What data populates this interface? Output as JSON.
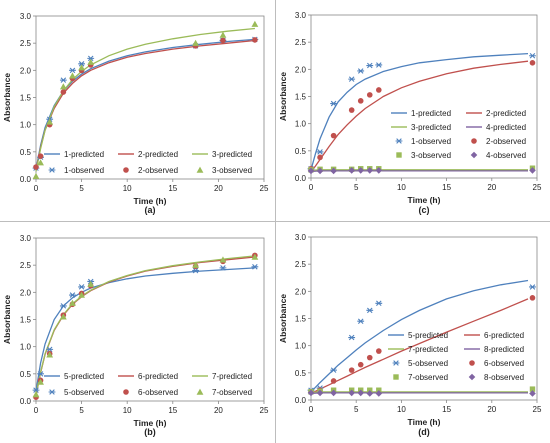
{
  "chart_data": [
    {
      "id": "a",
      "type": "line",
      "panel_label": "(a)",
      "xlabel": "Time (h)",
      "ylabel": "Absorbance",
      "xlim": [
        0,
        25
      ],
      "ylim": [
        0,
        3
      ],
      "xticks": [
        "0",
        "5",
        "10",
        "15",
        "20",
        "25"
      ],
      "yticks": [
        "0.0",
        "0.5",
        "1.0",
        "1.5",
        "2.0",
        "2.5",
        "3.0"
      ],
      "legend_position": "bottom-right",
      "lines": [
        {
          "name": "1-predicted",
          "color": "#4f81bd",
          "x": [
            0,
            0.5,
            1,
            2,
            3,
            4,
            5,
            6,
            8,
            10,
            12,
            15,
            18,
            21,
            24
          ],
          "y": [
            0.18,
            0.62,
            0.95,
            1.35,
            1.62,
            1.8,
            1.93,
            2.03,
            2.17,
            2.27,
            2.34,
            2.42,
            2.48,
            2.53,
            2.57
          ]
        },
        {
          "name": "2-predicted",
          "color": "#c0504d",
          "x": [
            0,
            0.5,
            1,
            2,
            3,
            4,
            5,
            6,
            8,
            10,
            12,
            15,
            18,
            21,
            24
          ],
          "y": [
            0.16,
            0.58,
            0.9,
            1.3,
            1.58,
            1.76,
            1.9,
            2.0,
            2.14,
            2.24,
            2.31,
            2.39,
            2.45,
            2.5,
            2.55
          ]
        },
        {
          "name": "3-predicted",
          "color": "#9bbb59",
          "x": [
            0,
            0.5,
            1,
            2,
            3,
            4,
            5,
            6,
            8,
            10,
            12,
            15,
            18,
            21,
            24
          ],
          "y": [
            0.14,
            0.56,
            0.9,
            1.33,
            1.62,
            1.83,
            1.98,
            2.1,
            2.27,
            2.39,
            2.48,
            2.58,
            2.66,
            2.72,
            2.77
          ]
        }
      ],
      "points": [
        {
          "name": "1-observed",
          "marker": "star",
          "color": "#4f81bd",
          "x": [
            0,
            0.5,
            1.5,
            3,
            4,
            5,
            6,
            17.5,
            20.5,
            24
          ],
          "y": [
            0.2,
            0.4,
            1.1,
            1.82,
            2.0,
            2.12,
            2.22,
            2.45,
            2.55,
            2.57
          ]
        },
        {
          "name": "2-observed",
          "marker": "circle",
          "color": "#c0504d",
          "x": [
            0,
            0.5,
            1.5,
            3,
            4,
            5,
            6,
            17.5,
            20.5,
            24
          ],
          "y": [
            0.22,
            0.42,
            1.0,
            1.6,
            1.85,
            2.0,
            2.1,
            2.45,
            2.55,
            2.56
          ]
        },
        {
          "name": "3-observed",
          "marker": "triangle",
          "color": "#9bbb59",
          "x": [
            0,
            0.5,
            1.5,
            3,
            4,
            5,
            6,
            17.5,
            20.5,
            24
          ],
          "y": [
            0.05,
            0.3,
            1.05,
            1.7,
            1.9,
            2.05,
            2.15,
            2.5,
            2.65,
            2.85
          ]
        }
      ]
    },
    {
      "id": "c",
      "type": "line",
      "panel_label": "(c)",
      "xlabel": "Time (h)",
      "ylabel": "Absorbance",
      "xlim": [
        0,
        25
      ],
      "ylim": [
        0,
        3
      ],
      "xticks": [
        "0",
        "5",
        "10",
        "15",
        "20",
        "25"
      ],
      "yticks": [
        "0.0",
        "0.5",
        "1.0",
        "1.5",
        "2.0",
        "2.5",
        "3.0"
      ],
      "legend_position": "bottom-right",
      "lines": [
        {
          "name": "1-predicted",
          "color": "#4f81bd",
          "x": [
            0,
            0.5,
            1,
            2,
            3,
            4,
            5,
            6,
            8,
            10,
            12,
            15,
            18,
            21,
            24
          ],
          "y": [
            0.15,
            0.45,
            0.72,
            1.12,
            1.4,
            1.58,
            1.72,
            1.82,
            1.96,
            2.05,
            2.12,
            2.18,
            2.23,
            2.26,
            2.29
          ]
        },
        {
          "name": "2-predicted",
          "color": "#c0504d",
          "x": [
            0,
            0.5,
            1,
            2,
            3,
            4,
            5,
            6,
            8,
            10,
            12,
            15,
            18,
            21,
            24
          ],
          "y": [
            0.12,
            0.22,
            0.34,
            0.58,
            0.8,
            0.98,
            1.14,
            1.28,
            1.5,
            1.66,
            1.78,
            1.92,
            2.02,
            2.09,
            2.15
          ]
        },
        {
          "name": "3-predicted",
          "color": "#9bbb59",
          "x": [
            0,
            1,
            3,
            6,
            10,
            15,
            20,
            24
          ],
          "y": [
            0.14,
            0.15,
            0.15,
            0.15,
            0.15,
            0.15,
            0.15,
            0.15
          ]
        },
        {
          "name": "4-predicted",
          "color": "#8064a2",
          "x": [
            0,
            1,
            3,
            6,
            10,
            15,
            20,
            24
          ],
          "y": [
            0.12,
            0.13,
            0.13,
            0.13,
            0.13,
            0.13,
            0.13,
            0.13
          ]
        }
      ],
      "points": [
        {
          "name": "1-observed",
          "marker": "star",
          "color": "#4f81bd",
          "x": [
            0,
            1,
            2.5,
            4.5,
            5.5,
            6.5,
            7.5,
            24.5
          ],
          "y": [
            0.17,
            0.48,
            1.37,
            1.82,
            1.97,
            2.07,
            2.08,
            2.25
          ]
        },
        {
          "name": "2-observed",
          "marker": "circle",
          "color": "#c0504d",
          "x": [
            0,
            1,
            2.5,
            4.5,
            5.5,
            6.5,
            7.5,
            24.5
          ],
          "y": [
            0.17,
            0.38,
            0.78,
            1.25,
            1.42,
            1.53,
            1.62,
            2.12
          ]
        },
        {
          "name": "3-observed",
          "marker": "square",
          "color": "#9bbb59",
          "x": [
            0,
            1,
            2.5,
            4.5,
            5.5,
            6.5,
            7.5,
            24.5
          ],
          "y": [
            0.15,
            0.16,
            0.16,
            0.16,
            0.17,
            0.17,
            0.17,
            0.18
          ]
        },
        {
          "name": "4-observed",
          "marker": "diamond",
          "color": "#8064a2",
          "x": [
            0,
            1,
            2.5,
            4.5,
            5.5,
            6.5,
            7.5,
            24.5
          ],
          "y": [
            0.13,
            0.13,
            0.13,
            0.14,
            0.14,
            0.14,
            0.14,
            0.14
          ]
        }
      ]
    },
    {
      "id": "b",
      "type": "line",
      "panel_label": "(b)",
      "xlabel": "Time (h)",
      "ylabel": "Absorbance",
      "xlim": [
        0,
        25
      ],
      "ylim": [
        0,
        3
      ],
      "xticks": [
        "0",
        "5",
        "10",
        "15",
        "20",
        "25"
      ],
      "yticks": [
        "0.0",
        "0.5",
        "1.0",
        "1.5",
        "2.0",
        "2.5",
        "3.0"
      ],
      "legend_position": "bottom-right",
      "lines": [
        {
          "name": "5-predicted",
          "color": "#4f81bd",
          "x": [
            0,
            0.5,
            1,
            2,
            3,
            4,
            5,
            6,
            8,
            10,
            12,
            15,
            18,
            21,
            24
          ],
          "y": [
            0.18,
            0.7,
            1.05,
            1.5,
            1.75,
            1.9,
            2.0,
            2.08,
            2.18,
            2.25,
            2.3,
            2.35,
            2.39,
            2.42,
            2.45
          ]
        },
        {
          "name": "6-predicted",
          "color": "#c0504d",
          "x": [
            0,
            0.5,
            1,
            2,
            3,
            4,
            5,
            6,
            8,
            10,
            12,
            15,
            18,
            21,
            24
          ],
          "y": [
            0.1,
            0.52,
            0.86,
            1.3,
            1.58,
            1.78,
            1.92,
            2.03,
            2.19,
            2.3,
            2.39,
            2.48,
            2.55,
            2.6,
            2.65
          ]
        },
        {
          "name": "7-predicted",
          "color": "#9bbb59",
          "x": [
            0,
            0.5,
            1,
            2,
            3,
            4,
            5,
            6,
            8,
            10,
            12,
            15,
            18,
            21,
            24
          ],
          "y": [
            0.11,
            0.53,
            0.87,
            1.31,
            1.59,
            1.79,
            1.93,
            2.04,
            2.2,
            2.31,
            2.4,
            2.49,
            2.56,
            2.62,
            2.67
          ]
        }
      ],
      "points": [
        {
          "name": "5-observed",
          "marker": "star",
          "color": "#4f81bd",
          "x": [
            0,
            0.5,
            1.5,
            3,
            4,
            5,
            6,
            17.5,
            20.5,
            24
          ],
          "y": [
            0.2,
            0.5,
            0.95,
            1.75,
            1.95,
            2.1,
            2.2,
            2.4,
            2.45,
            2.47
          ]
        },
        {
          "name": "6-observed",
          "marker": "circle",
          "color": "#c0504d",
          "x": [
            0,
            0.5,
            1.5,
            3,
            4,
            5,
            6,
            17.5,
            20.5,
            24
          ],
          "y": [
            0.07,
            0.38,
            0.87,
            1.58,
            1.78,
            1.98,
            2.12,
            2.48,
            2.57,
            2.68
          ]
        },
        {
          "name": "7-observed",
          "marker": "triangle",
          "color": "#9bbb59",
          "x": [
            0,
            0.5,
            1.5,
            3,
            4,
            5,
            6,
            17.5,
            20.5,
            24
          ],
          "y": [
            0.12,
            0.35,
            0.85,
            1.55,
            1.8,
            1.95,
            2.15,
            2.5,
            2.6,
            2.65
          ]
        }
      ]
    },
    {
      "id": "d",
      "type": "line",
      "panel_label": "(d)",
      "xlabel": "Time (h)",
      "ylabel": "Absorbance",
      "xlim": [
        0,
        25
      ],
      "ylim": [
        0,
        3
      ],
      "xticks": [
        "0",
        "5",
        "10",
        "15",
        "20",
        "25"
      ],
      "yticks": [
        "0.0",
        "0.5",
        "1.0",
        "1.5",
        "2.0",
        "2.5",
        "3.0"
      ],
      "legend_position": "bottom-right",
      "lines": [
        {
          "name": "5-predicted",
          "color": "#4f81bd",
          "x": [
            0,
            1,
            2,
            3,
            4,
            5,
            6,
            8,
            10,
            12,
            15,
            18,
            21,
            24
          ],
          "y": [
            0.15,
            0.32,
            0.48,
            0.64,
            0.78,
            0.92,
            1.05,
            1.28,
            1.48,
            1.65,
            1.86,
            2.01,
            2.12,
            2.2
          ]
        },
        {
          "name": "6-predicted",
          "color": "#c0504d",
          "x": [
            0,
            1,
            2,
            3,
            4,
            5,
            6,
            8,
            10,
            12,
            15,
            18,
            21,
            24
          ],
          "y": [
            0.12,
            0.2,
            0.28,
            0.36,
            0.44,
            0.52,
            0.6,
            0.75,
            0.9,
            1.04,
            1.25,
            1.45,
            1.65,
            1.86
          ]
        },
        {
          "name": "7-predicted",
          "color": "#9bbb59",
          "x": [
            0,
            1,
            3,
            6,
            10,
            15,
            20,
            24
          ],
          "y": [
            0.14,
            0.15,
            0.15,
            0.15,
            0.15,
            0.15,
            0.15,
            0.15
          ]
        },
        {
          "name": "8-predicted",
          "color": "#8064a2",
          "x": [
            0,
            1,
            3,
            6,
            10,
            15,
            20,
            24
          ],
          "y": [
            0.12,
            0.13,
            0.13,
            0.13,
            0.13,
            0.13,
            0.13,
            0.13
          ]
        }
      ],
      "points": [
        {
          "name": "5-observed",
          "marker": "star",
          "color": "#4f81bd",
          "x": [
            0,
            1,
            2.5,
            4.5,
            5.5,
            6.5,
            7.5,
            24.5
          ],
          "y": [
            0.18,
            0.22,
            0.55,
            1.15,
            1.45,
            1.65,
            1.78,
            2.08
          ]
        },
        {
          "name": "6-observed",
          "marker": "circle",
          "color": "#c0504d",
          "x": [
            0,
            1,
            2.5,
            4.5,
            5.5,
            6.5,
            7.5,
            24.5
          ],
          "y": [
            0.15,
            0.18,
            0.35,
            0.55,
            0.65,
            0.78,
            0.9,
            1.88
          ]
        },
        {
          "name": "7-observed",
          "marker": "square",
          "color": "#9bbb59",
          "x": [
            0,
            1,
            2.5,
            4.5,
            5.5,
            6.5,
            7.5,
            24.5
          ],
          "y": [
            0.15,
            0.16,
            0.18,
            0.18,
            0.18,
            0.18,
            0.18,
            0.2
          ]
        },
        {
          "name": "8-observed",
          "marker": "diamond",
          "color": "#8064a2",
          "x": [
            0,
            1,
            2.5,
            4.5,
            5.5,
            6.5,
            7.5,
            24.5
          ],
          "y": [
            0.13,
            0.13,
            0.13,
            0.13,
            0.13,
            0.12,
            0.12,
            0.12
          ]
        }
      ]
    }
  ]
}
